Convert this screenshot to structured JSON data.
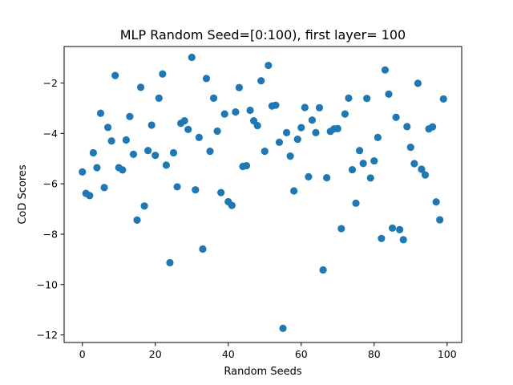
{
  "chart_data": {
    "type": "scatter",
    "title": "MLP Random Seed=[0:100), first layer= 100",
    "xlabel": "Random Seeds",
    "ylabel": "CoD Scores",
    "xlim": [
      -5,
      104
    ],
    "ylim": [
      -12.3,
      -0.55
    ],
    "xticks": [
      0,
      20,
      40,
      60,
      80,
      100
    ],
    "yticks": [
      -12,
      -10,
      -8,
      -6,
      -4,
      -2
    ],
    "grid": false,
    "marker_color": "#1f77b4",
    "x": [
      0,
      1,
      2,
      3,
      4,
      5,
      6,
      7,
      8,
      9,
      10,
      11,
      12,
      13,
      14,
      15,
      16,
      17,
      18,
      19,
      20,
      21,
      22,
      23,
      24,
      25,
      26,
      27,
      28,
      29,
      30,
      31,
      32,
      33,
      34,
      35,
      36,
      37,
      38,
      39,
      40,
      41,
      42,
      43,
      44,
      45,
      46,
      47,
      48,
      49,
      50,
      51,
      52,
      53,
      54,
      55,
      56,
      57,
      58,
      59,
      60,
      61,
      62,
      63,
      64,
      65,
      66,
      67,
      68,
      69,
      70,
      71,
      72,
      73,
      74,
      75,
      76,
      77,
      78,
      79,
      80,
      81,
      82,
      83,
      84,
      85,
      86,
      87,
      88,
      89,
      90,
      91,
      92,
      93,
      94,
      95,
      96,
      97,
      98,
      99
    ],
    "y": [
      -5.53,
      -6.38,
      -6.47,
      -4.77,
      -5.36,
      -3.2,
      -6.15,
      -3.76,
      -4.3,
      -1.7,
      -5.36,
      -5.45,
      -4.26,
      -3.33,
      -4.83,
      -7.44,
      -2.17,
      -6.88,
      -4.68,
      -3.67,
      -4.87,
      -2.6,
      -1.64,
      -5.26,
      -9.13,
      -4.77,
      -6.12,
      -3.6,
      -3.5,
      -3.84,
      -0.98,
      -6.24,
      -4.16,
      -8.59,
      -1.82,
      -4.71,
      -2.6,
      -3.91,
      -6.35,
      -3.23,
      -6.71,
      -6.86,
      -3.15,
      -2.18,
      -5.31,
      -5.28,
      -3.08,
      -3.5,
      -3.69,
      -1.91,
      -4.71,
      -1.3,
      -2.91,
      -2.88,
      -4.35,
      -11.74,
      -3.97,
      -4.9,
      -6.28,
      -4.23,
      -3.77,
      -2.97,
      -5.72,
      -3.47,
      -3.97,
      -2.98,
      -9.42,
      -5.76,
      -3.92,
      -3.82,
      -3.81,
      -7.78,
      -3.23,
      -2.6,
      -5.44,
      -6.77,
      -4.68,
      -5.19,
      -2.61,
      -5.77,
      -5.09,
      -4.16,
      -8.17,
      -1.48,
      -2.44,
      -7.76,
      -3.36,
      -7.82,
      -8.22,
      -3.73,
      -4.55,
      -5.2,
      -2.01,
      -5.42,
      -5.65,
      -3.82,
      -3.74,
      -6.72,
      -7.43,
      -2.63
    ]
  }
}
